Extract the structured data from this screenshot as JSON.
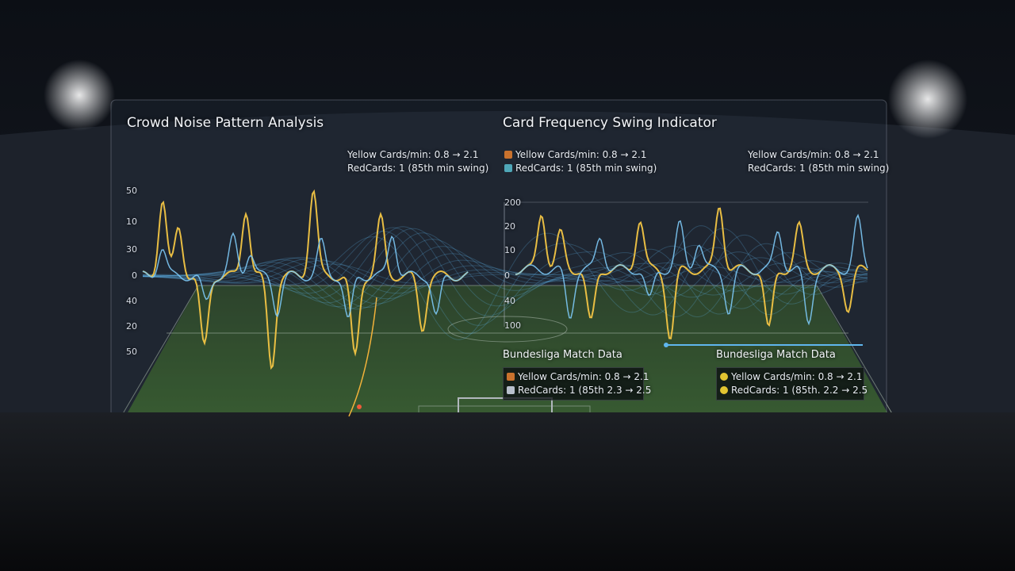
{
  "panels": [
    {
      "title": "Crowd Noise Pattern Analysis",
      "stats": [
        "Yellow Cards/min: 0.8 → 2.1",
        "RedCards: 1 (85th min swing)"
      ],
      "axis_labels": [
        "50",
        "10",
        "30",
        "0",
        "40",
        "20",
        "50"
      ]
    },
    {
      "title": "Card Frequency Swing Indicator",
      "stats": [
        "Yellow Cards/min: 0.8 → 2.1",
        "RedCards: 1 (85th min swing)"
      ],
      "stats_right": [
        "Yellow Cards/min: 0.8 → 2.1",
        "RedCards: 1 (85th min swing)"
      ],
      "axis_labels": [
        "200",
        "20",
        "10",
        "0",
        "40",
        "100"
      ]
    }
  ],
  "cards": [
    {
      "title": "Bundesliga Match Data",
      "lines": [
        "Yellow Cards/min: 0.8 → 2.1",
        "RedCards: 1 (85th 2.3 → 2.5"
      ]
    },
    {
      "title": "Bundesliga Match Data",
      "lines": [
        "Yellow Cards/min: 0.8 → 2.1",
        "RedCards: 1 (85th. 2.2 → 2.5"
      ]
    }
  ]
}
